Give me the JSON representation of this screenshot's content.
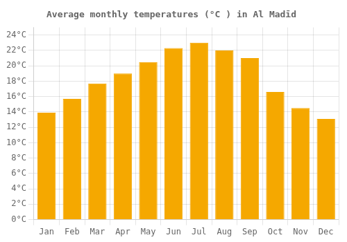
{
  "chart_data": {
    "type": "bar",
    "title": "Average monthly temperatures (°C ) in Al Madīd",
    "categories": [
      "Jan",
      "Feb",
      "Mar",
      "Apr",
      "May",
      "Jun",
      "Jul",
      "Aug",
      "Sep",
      "Oct",
      "Nov",
      "Dec"
    ],
    "values": [
      13.9,
      15.7,
      17.7,
      19.0,
      20.5,
      22.3,
      23.0,
      22.0,
      21.0,
      16.6,
      14.5,
      13.1
    ],
    "color": "#F5A800",
    "ylim": [
      0,
      25
    ],
    "yticks": [
      {
        "value": 0,
        "label": "0°C"
      },
      {
        "value": 2,
        "label": "2°C"
      },
      {
        "value": 4,
        "label": "4°C"
      },
      {
        "value": 6,
        "label": "6°C"
      },
      {
        "value": 8,
        "label": "8°C"
      },
      {
        "value": 10,
        "label": "10°C"
      },
      {
        "value": 12,
        "label": "12°C"
      },
      {
        "value": 14,
        "label": "14°C"
      },
      {
        "value": 16,
        "label": "16°C"
      },
      {
        "value": 18,
        "label": "18°C"
      },
      {
        "value": 20,
        "label": "20°C"
      },
      {
        "value": 22,
        "label": "22°C"
      },
      {
        "value": 24,
        "label": "24°C"
      }
    ],
    "grid": true
  }
}
